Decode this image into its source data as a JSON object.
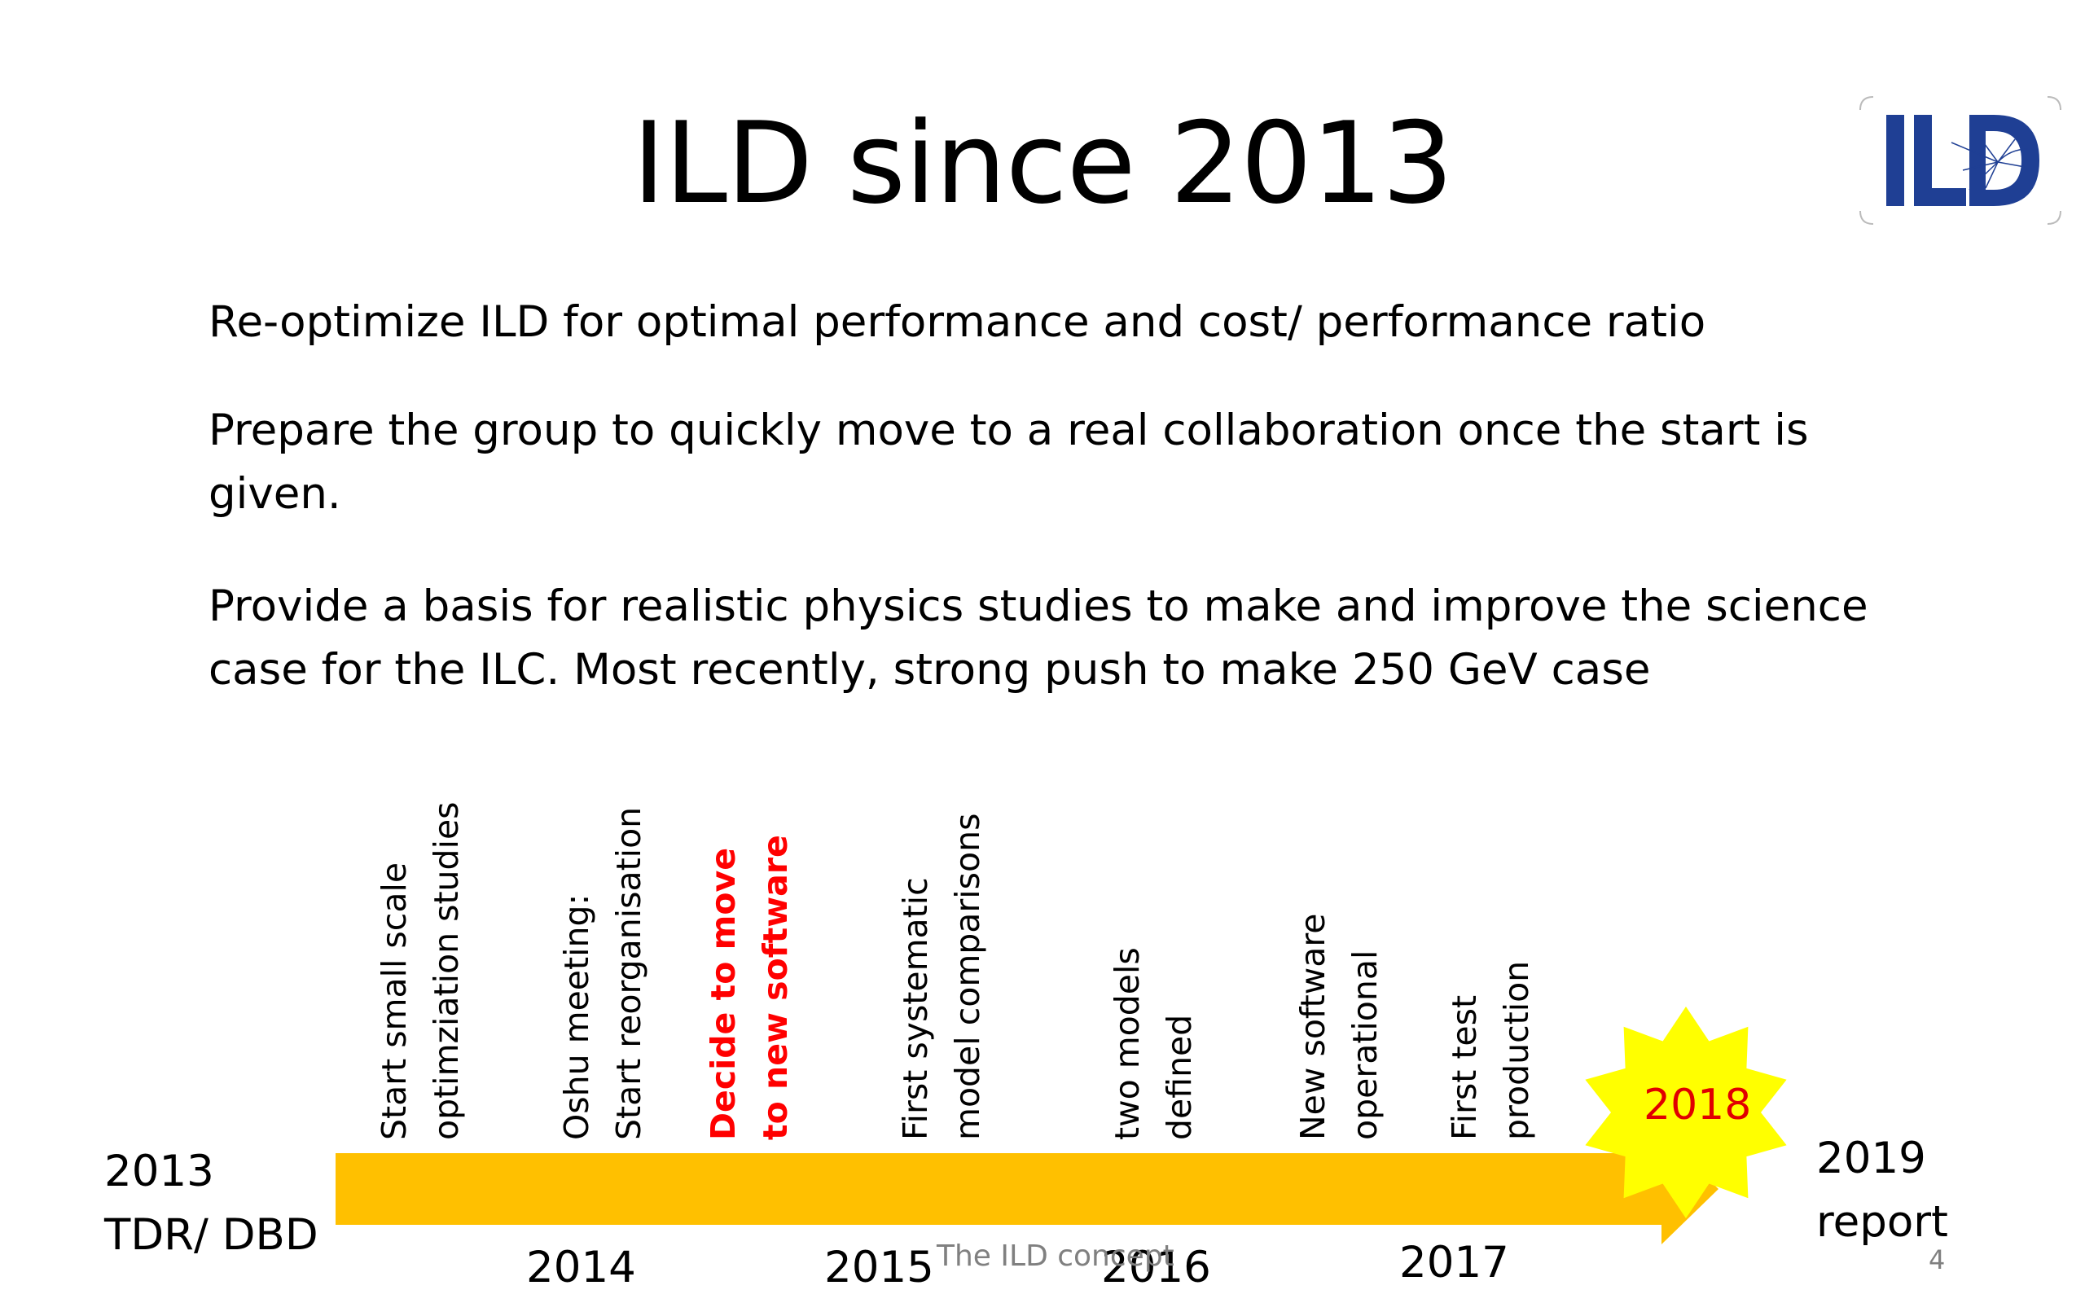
{
  "slide": {
    "title": "ILD since 2013",
    "logo_text": "ILD",
    "paragraphs": [
      "Re-optimize ILD for optimal performance and cost/ performance ratio",
      "Prepare the group to quickly move to a real collaboration once the start is given.",
      "Provide a basis for realistic physics studies to make and improve the science case for the ILC. Most recently, strong push to make 250 GeV case"
    ],
    "footer": "The ILD concept",
    "page_number": "4"
  },
  "timeline": {
    "start_year": "2013",
    "start_label": "TDR/ DBD",
    "end_year": "2019",
    "end_label": "report",
    "highlight_year": "2018",
    "year_ticks": [
      "2014",
      "2015",
      "2016",
      "2017"
    ],
    "events": [
      {
        "line1": "Start small scale",
        "line2": "optimziation studies",
        "emphasis": false
      },
      {
        "line1": "Oshu meeting:",
        "line2": "Start reorganisation",
        "emphasis": false
      },
      {
        "line1": "Decide to move",
        "line2": "to new software",
        "emphasis": true
      },
      {
        "line1": "First systematic",
        "line2": "model comparisons",
        "emphasis": false
      },
      {
        "line1": "two models",
        "line2": "defined",
        "emphasis": false
      },
      {
        "line1": "New software",
        "line2": "operational",
        "emphasis": false
      },
      {
        "line1": "First test",
        "line2": "production",
        "emphasis": false
      }
    ],
    "colors": {
      "arrow": "#ffc000",
      "star": "#ffff00",
      "highlight_text": "#e00000",
      "emphasis_text": "#ff0000",
      "logo": "#1f3f94"
    }
  }
}
